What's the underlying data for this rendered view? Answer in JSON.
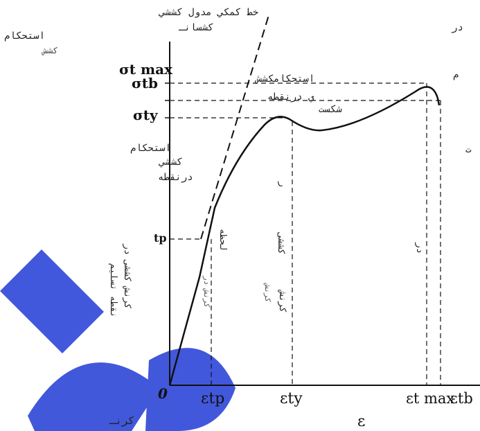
{
  "watermark_color": "#2d46d8",
  "curve_color": "#111111",
  "annotations": {
    "tangent_line": "خط کمکي مدول کششي",
    "tangent_line_sub": "کشسانـ",
    "tensile_strength_left": "استحکام",
    "tensile_strength_left_sub": "کشش",
    "right_edge_top": "در",
    "right_edge_mid": "م",
    "right_edge_low": "ت",
    "strength_at_break": "استحکامکشش",
    "strength_at_break_2": "ي درنقطه",
    "strength_at_break_3": "شکست",
    "yield_strength": "استحکام",
    "yield_strength_2": "کششي",
    "yield_strength_3": "درنقطه",
    "bottom_left": "کرنـ"
  },
  "labels": {
    "sigma_t_max": "σt max",
    "sigma_tb": "σtb",
    "sigma_ty": "σty",
    "sigma_tp_partial": "tp",
    "origin": "0",
    "eps_tp": "εtp",
    "eps_ty": "εty",
    "eps_t_max": "εt max",
    "eps_tb": "εtb",
    "eps_axis": "ε"
  },
  "vertical_texts": {
    "v1": "کرنش کششی در",
    "v2": "نقطه تسلیم",
    "v3": "لحظه",
    "v4": "کرنش در",
    "v5": "کششی",
    "v6": "کرنش",
    "v7": "کرنش",
    "v8": "ر",
    "v9": "در"
  }
}
